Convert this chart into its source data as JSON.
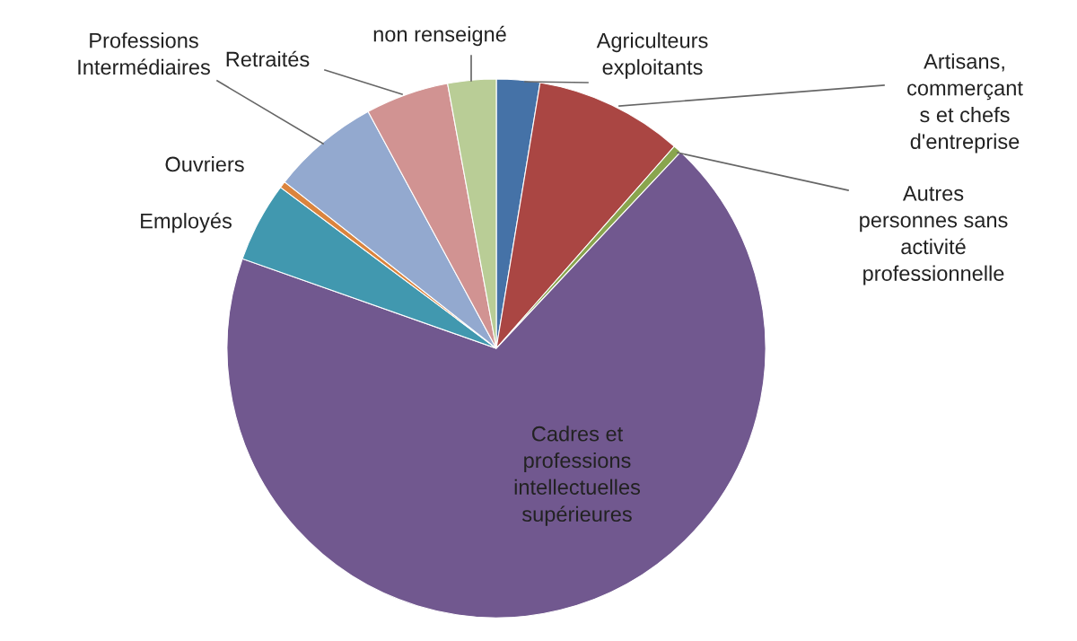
{
  "chart_data": {
    "type": "pie",
    "categories": [
      "Agriculteurs\nexploitants",
      "Artisans,\ncommerçant\ns et chefs\nd'entreprise",
      "Autres\npersonnes sans\nactivité\nprofessionnelle",
      "Cadres et\nprofessions\nintellectuelles\nsupérieures",
      "Employés",
      "Ouvriers",
      "Professions\nIntermédiaires",
      "Retraités",
      "non renseigné"
    ],
    "values": [
      2.6,
      8.9,
      0.5,
      68.4,
      4.8,
      0.4,
      6.5,
      5.0,
      2.9
    ],
    "colors": [
      "#4572a7",
      "#aa4643",
      "#89a54e",
      "#71588f",
      "#4198af",
      "#db843d",
      "#93a9cf",
      "#d19392",
      "#b9cd96"
    ]
  }
}
